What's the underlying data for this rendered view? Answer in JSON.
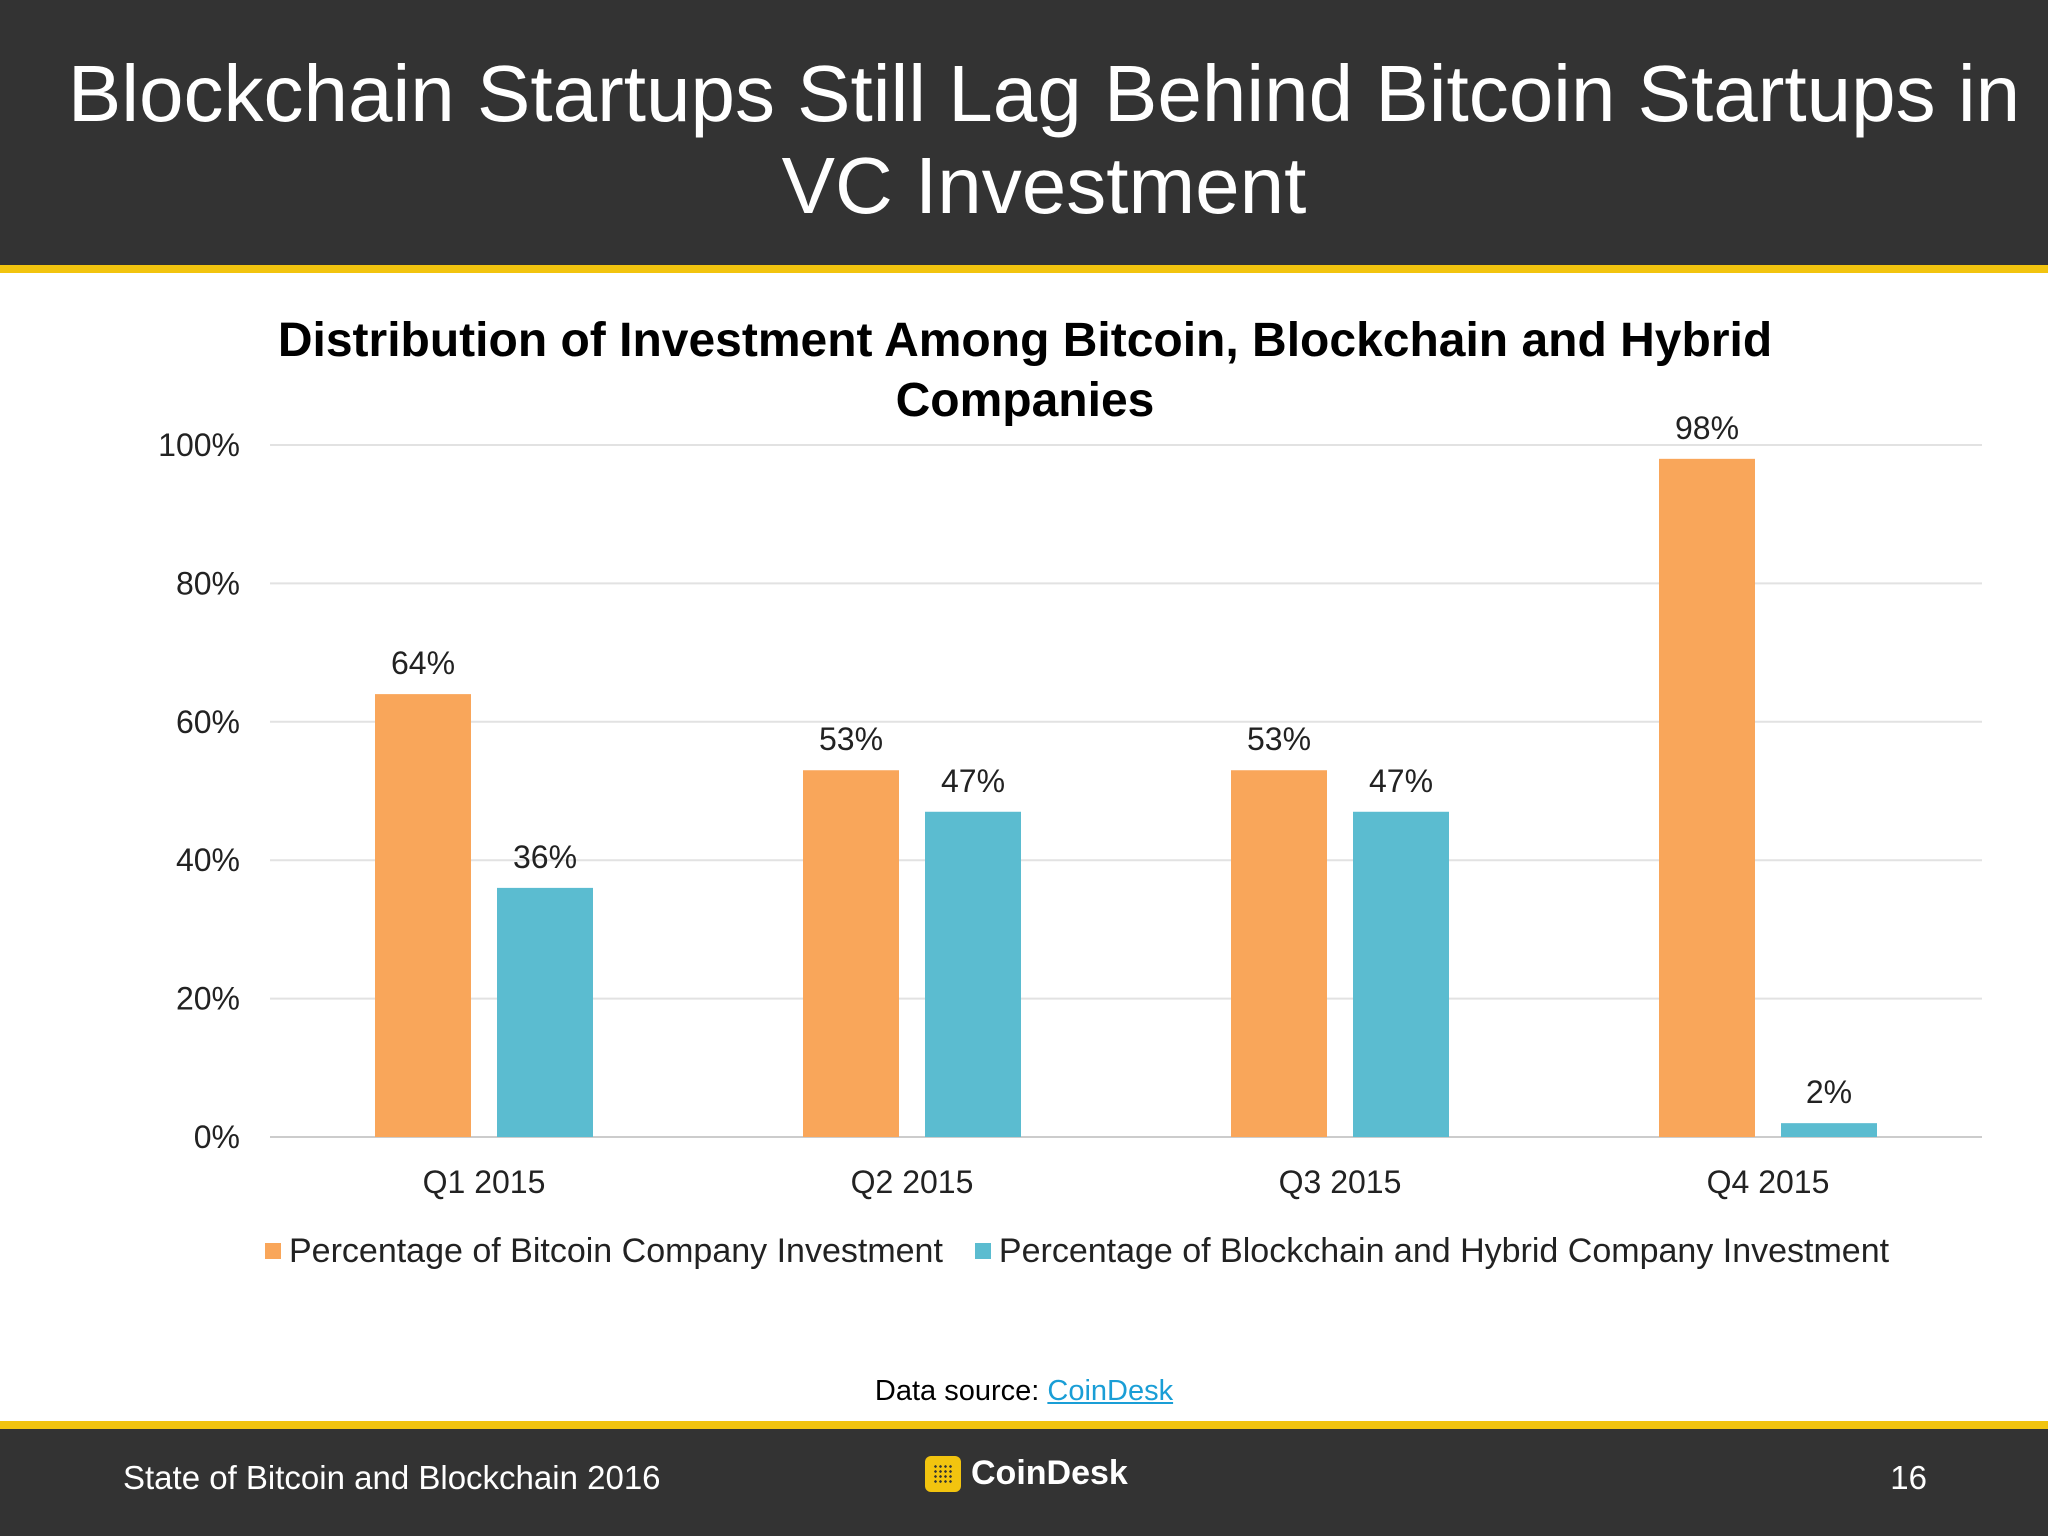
{
  "slide": {
    "title": "Blockchain Startups Still Lag Behind Bitcoin Startups in VC Investment"
  },
  "chart_data": {
    "type": "bar",
    "title": "Distribution of Investment Among Bitcoin, Blockchain and Hybrid Companies",
    "categories": [
      "Q1 2015",
      "Q2 2015",
      "Q3 2015",
      "Q4 2015"
    ],
    "series": [
      {
        "name": "Percentage of Bitcoin Company Investment",
        "values": [
          64,
          53,
          53,
          98
        ],
        "labels": [
          "64%",
          "53%",
          "53%",
          "98%"
        ],
        "color": "#F9A65A"
      },
      {
        "name": "Percentage of Blockchain and Hybrid Company Investment",
        "values": [
          36,
          47,
          47,
          2
        ],
        "labels": [
          "36%",
          "47%",
          "47%",
          "2%"
        ],
        "color": "#5BBCD0"
      }
    ],
    "ylim": [
      0,
      100
    ],
    "yticks": [
      "0%",
      "20%",
      "40%",
      "60%",
      "80%",
      "100%"
    ],
    "grid": true,
    "legend": "bottom"
  },
  "source": {
    "prefix": "Data source:",
    "link_text": "CoinDesk"
  },
  "footer": {
    "left_text": "State of Bitcoin and Blockchain 2016",
    "brand": "CoinDesk",
    "page_number": "16"
  },
  "colors": {
    "header_bg": "#333333",
    "accent": "#F2C40F",
    "link": "#1A9ED6"
  }
}
